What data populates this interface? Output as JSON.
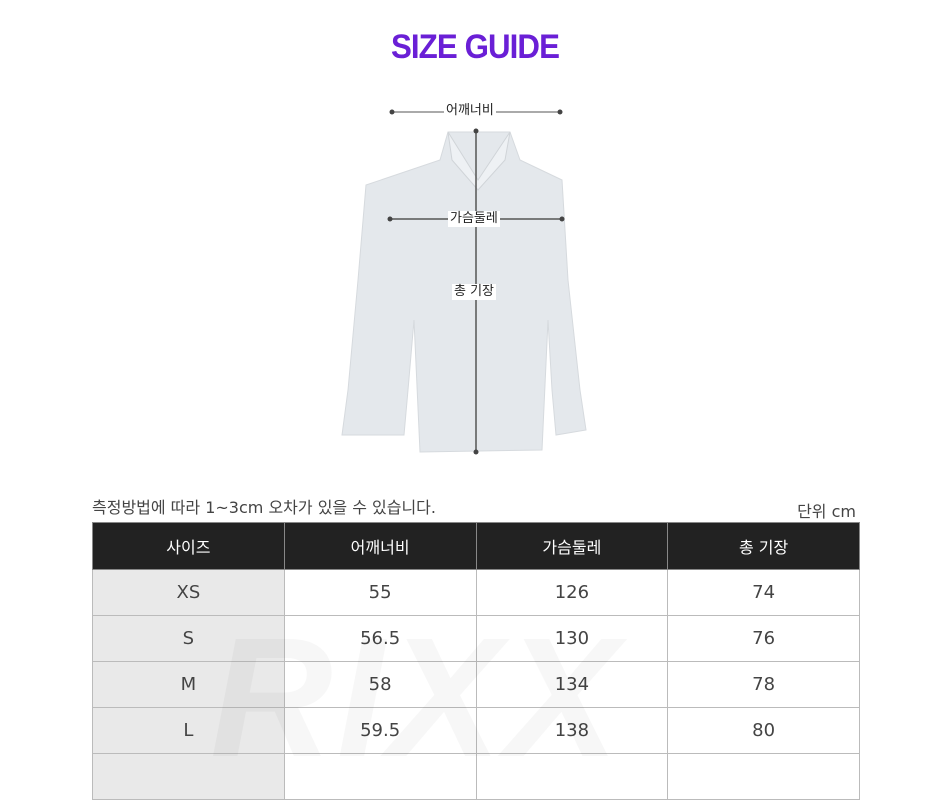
{
  "title": "SIZE GUIDE",
  "diagram": {
    "shoulder_label": "어깨너비",
    "chest_label": "가슴둘레",
    "length_label": "총 기장",
    "watermark": "RIXX"
  },
  "note": "측정방법에 따라 1~3cm 오차가 있을 수 있습니다.",
  "unit": "단위 cm",
  "table": {
    "headers": [
      "사이즈",
      "어깨너비",
      "가슴둘레",
      "총 기장"
    ],
    "rows": [
      [
        "XS",
        "55",
        "126",
        "74"
      ],
      [
        "S",
        "56.5",
        "130",
        "76"
      ],
      [
        "M",
        "58",
        "134",
        "78"
      ],
      [
        "L",
        "59.5",
        "138",
        "80"
      ],
      [
        "",
        "",
        "",
        ""
      ]
    ]
  },
  "colors": {
    "title": "#6a1fd6",
    "header_bg": "#222222"
  }
}
